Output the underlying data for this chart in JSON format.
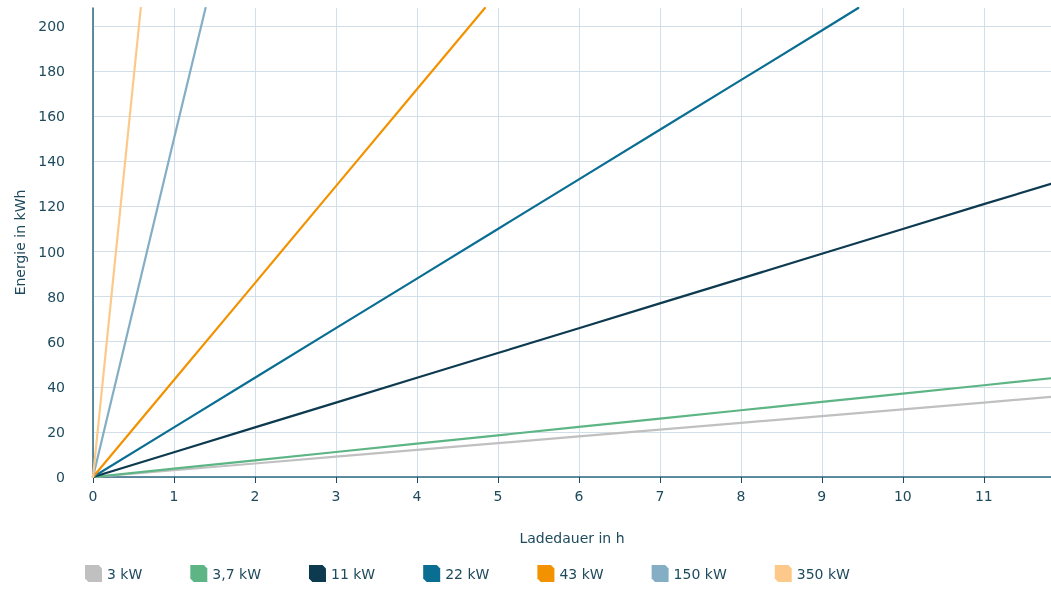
{
  "chart_data": {
    "type": "line",
    "xlabel": "Ladedauer in h",
    "ylabel": "Energie in kWh",
    "xlim": [
      0,
      11.83
    ],
    "xticks": [
      0,
      1,
      2,
      3,
      4,
      5,
      6,
      7,
      8,
      9,
      10,
      11
    ],
    "ylim": [
      0,
      208
    ],
    "yticks": [
      0,
      20,
      40,
      60,
      80,
      100,
      120,
      140,
      160,
      180,
      200
    ],
    "grid": true,
    "legend": "bottom",
    "marker": "none",
    "line_style": "solid",
    "series": [
      {
        "name": "3 kW",
        "color": "#c0c0c0",
        "x": [
          0,
          1,
          2,
          3,
          4,
          5,
          6,
          7,
          8,
          9,
          10,
          11,
          11.83
        ],
        "values": [
          0,
          3,
          6,
          9,
          12,
          15,
          18,
          21,
          24,
          27,
          30,
          33,
          35.5
        ]
      },
      {
        "name": "3,7 kW",
        "color": "#5db585",
        "x": [
          0,
          1,
          2,
          3,
          4,
          5,
          6,
          7,
          8,
          9,
          10,
          11,
          11.83
        ],
        "values": [
          0,
          3.7,
          7.4,
          11.1,
          14.8,
          18.5,
          22.2,
          25.9,
          29.6,
          33.3,
          37,
          40.7,
          43.8
        ]
      },
      {
        "name": "11 kW",
        "color": "#0d3a4f",
        "x": [
          0,
          1,
          2,
          3,
          4,
          5,
          6,
          7,
          8,
          9,
          10,
          11,
          11.83
        ],
        "values": [
          0,
          11,
          22,
          33,
          44,
          55,
          66,
          77,
          88,
          99,
          110,
          121,
          130
        ]
      },
      {
        "name": "22 kW",
        "color": "#0a6e93",
        "x": [
          0,
          1,
          2,
          3,
          4,
          5,
          6,
          7,
          8,
          9,
          9.45
        ],
        "values": [
          0,
          22,
          44,
          66,
          88,
          110,
          132,
          154,
          176,
          198,
          208
        ]
      },
      {
        "name": "43 kW",
        "color": "#f39200",
        "x": [
          0,
          1,
          2,
          3,
          4,
          4.84
        ],
        "values": [
          0,
          43,
          86,
          129,
          172,
          208
        ]
      },
      {
        "name": "150 kW",
        "color": "#84aec4",
        "x": [
          0,
          1,
          1.39
        ],
        "values": [
          0,
          150,
          208
        ]
      },
      {
        "name": "350 kW",
        "color": "#fdc98a",
        "x": [
          0,
          0.59
        ],
        "values": [
          0,
          208
        ]
      }
    ]
  }
}
